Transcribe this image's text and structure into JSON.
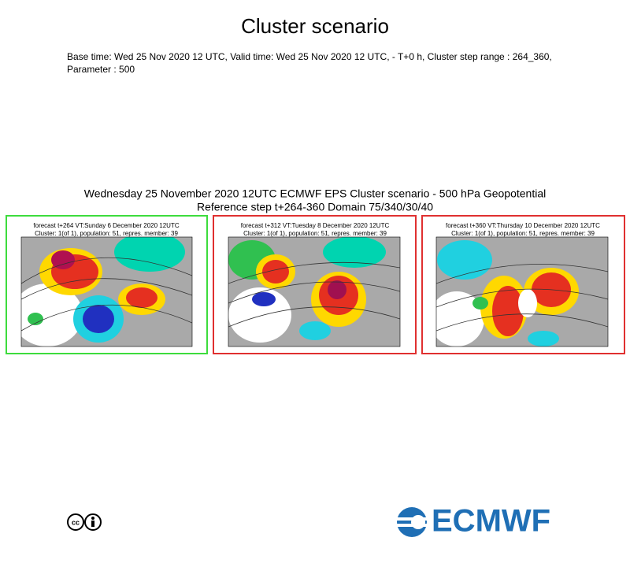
{
  "header": {
    "title": "Cluster scenario",
    "info": [
      "Base time: Wed 25 Nov 2020 12 UTC, Valid time: Wed 25 Nov 2020 12 UTC, - T+0 h, Cluster step range : 264_360,",
      "Parameter : 500"
    ]
  },
  "figure": {
    "title": [
      "Wednesday 25 November 2020 12UTC ECMWF EPS Cluster scenario - 500 hPa Geopotential",
      "Reference step t+264-360 Domain 75/340/30/40"
    ],
    "panels": [
      {
        "caption": [
          "forecast t+264 VT:Sunday 6 December 2020 12UTC",
          "Cluster: 1(of 1), population: 51, repres. member: 39"
        ]
      },
      {
        "caption": [
          "forecast t+312 VT:Tuesday 8 December 2020 12UTC",
          "Cluster: 1(of 1), population: 51, repres. member: 39"
        ]
      },
      {
        "caption": [
          "forecast t+360 VT:Thursday 10 December 2020 12UTC",
          "Cluster: 1(of 1), population: 51, repres. member: 39"
        ]
      }
    ]
  },
  "footer": {
    "logo": "ECMWF",
    "license": "cc"
  }
}
